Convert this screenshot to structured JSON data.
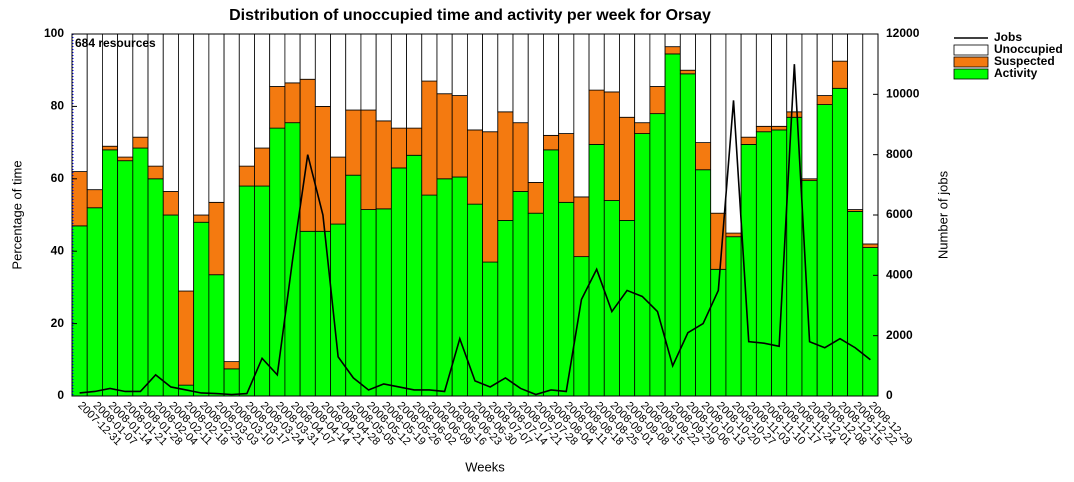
{
  "chart_data": {
    "type": "stacked-bar-line",
    "title": "Distribution of unoccupied time and activity per week for Orsay",
    "x_label": "Weeks",
    "y_label": "Percentage of time",
    "y2_label": "Number of jobs",
    "annotation": "684 resources",
    "annotation_color": "#0000ff",
    "legend": "top-right-outside",
    "categories": [
      "2007-12-31",
      "2008-01-07",
      "2008-01-14",
      "2008-01-21",
      "2008-01-28",
      "2008-02-04",
      "2008-02-11",
      "2008-02-18",
      "2008-02-25",
      "2008-03-03",
      "2008-03-10",
      "2008-03-17",
      "2008-03-24",
      "2008-03-31",
      "2008-04-07",
      "2008-04-14",
      "2008-04-21",
      "2008-04-28",
      "2008-05-05",
      "2008-05-12",
      "2008-05-19",
      "2008-05-26",
      "2008-06-02",
      "2008-06-09",
      "2008-06-16",
      "2008-06-23",
      "2008-06-30",
      "2008-07-07",
      "2008-07-14",
      "2008-07-21",
      "2008-07-28",
      "2008-08-04",
      "2008-08-11",
      "2008-08-18",
      "2008-08-25",
      "2008-09-01",
      "2008-09-08",
      "2008-09-15",
      "2008-09-22",
      "2008-09-29",
      "2008-10-06",
      "2008-10-13",
      "2008-10-20",
      "2008-10-27",
      "2008-11-03",
      "2008-11-10",
      "2008-11-17",
      "2008-11-24",
      "2008-12-01",
      "2008-12-08",
      "2008-12-15",
      "2008-12-22",
      "2008-12-29"
    ],
    "series": [
      {
        "name": "Jobs",
        "kind": "line",
        "axis": "y2",
        "color": "#000000",
        "values": [
          100,
          150,
          250,
          150,
          150,
          700,
          300,
          200,
          100,
          80,
          50,
          80,
          1250,
          700,
          4500,
          8000,
          6000,
          1300,
          600,
          200,
          400,
          300,
          200,
          200,
          150,
          1900,
          500,
          300,
          600,
          250,
          50,
          200,
          150,
          3200,
          4200,
          2800,
          3500,
          3300,
          2800,
          1000,
          2100,
          2400,
          3500,
          9800,
          1800,
          1750,
          1650,
          11000,
          1800,
          1600,
          1900,
          1600,
          1200
        ]
      },
      {
        "name": "Unoccupied",
        "kind": "bar",
        "color": "#ffffff",
        "values": [
          38,
          43,
          31,
          34,
          28.5,
          36.5,
          43.5,
          71,
          50,
          46.5,
          90.5,
          36.5,
          31.5,
          14.5,
          13.5,
          12.5,
          20,
          34,
          21,
          21,
          24,
          26,
          26,
          13,
          16.5,
          17,
          26.5,
          27,
          21.5,
          24.5,
          41,
          28,
          27.5,
          45,
          15.5,
          16,
          23,
          24.5,
          14.5,
          3.5,
          10,
          30,
          49.5,
          55,
          28.5,
          25.5,
          25.5,
          21.5,
          40,
          17,
          7.5,
          48.5,
          58
        ]
      },
      {
        "name": "Suspected",
        "kind": "bar",
        "color": "#f47a10",
        "values": [
          15,
          5,
          1,
          1,
          3,
          3.5,
          6.5,
          26,
          2,
          20,
          2,
          5.5,
          10.5,
          11.5,
          11,
          42,
          34.5,
          18.5,
          18,
          27.5,
          24.3,
          11,
          7.5,
          31.5,
          23.5,
          22.5,
          20.5,
          36,
          30,
          19,
          8.5,
          4,
          19,
          16.5,
          15,
          30,
          28.5,
          3,
          7.5,
          2,
          1,
          7.5,
          15.5,
          1,
          2,
          1.5,
          1,
          1.5,
          0.5,
          2.5,
          7.5,
          0.5,
          1
        ]
      },
      {
        "name": "Activity",
        "kind": "bar",
        "color": "#00ff00",
        "values": [
          47,
          52,
          68,
          65,
          68.5,
          60,
          50,
          3,
          48,
          33.5,
          7.5,
          58,
          58,
          74,
          75.5,
          45.5,
          45.5,
          47.5,
          61,
          51.5,
          51.7,
          63,
          66.5,
          55.5,
          60,
          60.5,
          53,
          37,
          48.5,
          56.5,
          50.5,
          68,
          53.5,
          38.5,
          69.5,
          54,
          48.5,
          72.5,
          78,
          94.5,
          89,
          62.5,
          35,
          44,
          69.5,
          73,
          73.5,
          77,
          59.5,
          80.5,
          85,
          51,
          41
        ]
      }
    ],
    "ylim": [
      0,
      100
    ],
    "yticks": [
      0,
      20,
      40,
      60,
      80,
      100
    ],
    "y2lim": [
      0,
      12000
    ],
    "y2ticks": [
      0,
      2000,
      4000,
      6000,
      8000,
      10000,
      12000
    ]
  }
}
